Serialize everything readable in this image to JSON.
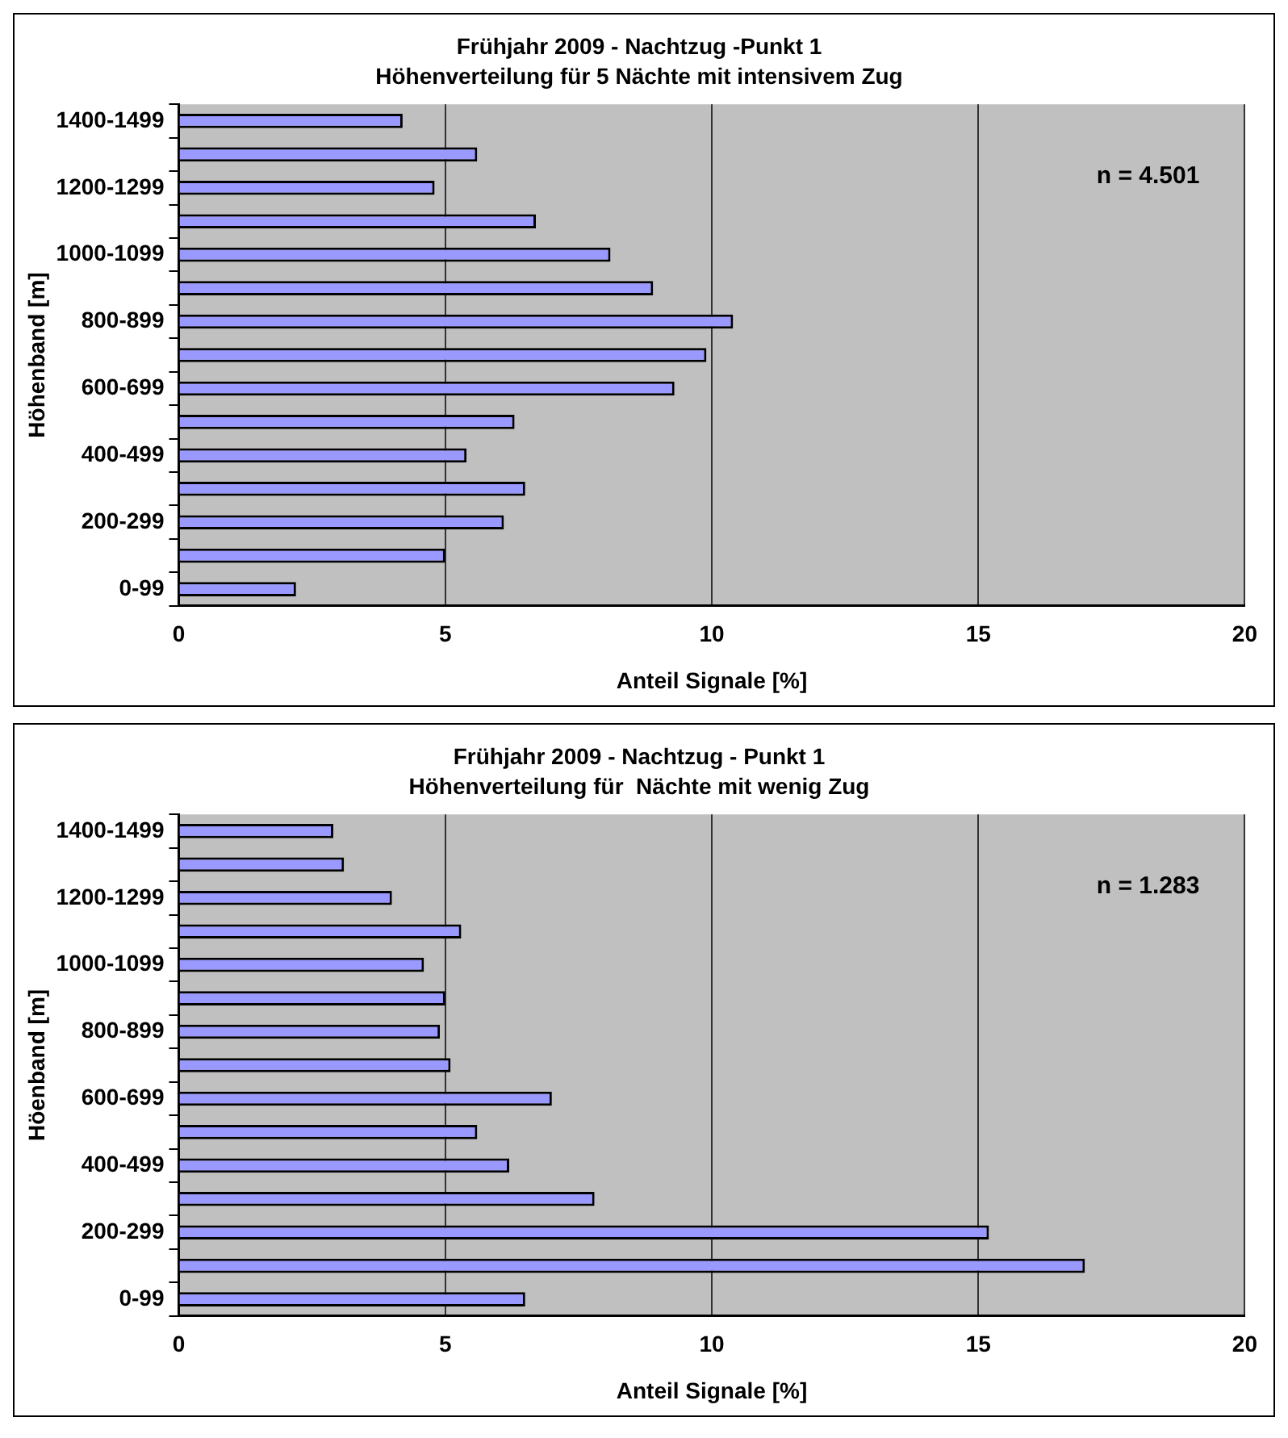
{
  "chart_data": [
    {
      "type": "bar",
      "orientation": "horizontal",
      "title": "Frühjahr 2009 - Nachtzug -Punkt 1",
      "subtitle": "Höhenverteilung für 5 Nächte mit intensivem Zug",
      "xlabel": "Anteil Signale [%]",
      "ylabel": "Höhenband [m]",
      "categories": [
        "1400-1499",
        null,
        "1200-1299",
        null,
        "1000-1099",
        null,
        "800-899",
        null,
        "600-699",
        null,
        "400-499",
        null,
        "200-299",
        null,
        "0-99"
      ],
      "values": [
        4.2,
        5.6,
        4.8,
        6.7,
        8.1,
        8.9,
        10.4,
        9.9,
        9.3,
        6.3,
        5.4,
        6.5,
        6.1,
        5.0,
        2.2
      ],
      "color": "#9999ff",
      "xlim": [
        0,
        20
      ],
      "xticks": [
        0,
        5,
        10,
        15,
        20
      ],
      "grid": "x",
      "legend": false,
      "annotations": [
        "n = 4.501"
      ]
    },
    {
      "type": "bar",
      "orientation": "horizontal",
      "title": "Frühjahr 2009 - Nachtzug - Punkt 1",
      "subtitle": "Höhenverteilung für  Nächte mit wenig Zug",
      "xlabel": "Anteil Signale [%]",
      "ylabel": "Höenband [m]",
      "categories": [
        "1400-1499",
        null,
        "1200-1299",
        null,
        "1000-1099",
        null,
        "800-899",
        null,
        "600-699",
        null,
        "400-499",
        null,
        "200-299",
        null,
        "0-99"
      ],
      "values": [
        2.9,
        3.1,
        4.0,
        5.3,
        4.6,
        5.0,
        4.9,
        5.1,
        7.0,
        5.6,
        6.2,
        7.8,
        15.2,
        17.0,
        6.5
      ],
      "color": "#9999ff",
      "xlim": [
        0,
        20
      ],
      "xticks": [
        0,
        5,
        10,
        15,
        20
      ],
      "grid": "x",
      "legend": false,
      "annotations": [
        "n = 1.283"
      ]
    }
  ]
}
